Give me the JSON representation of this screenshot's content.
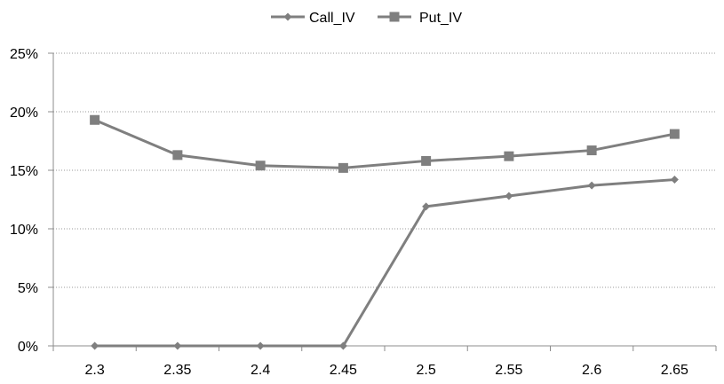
{
  "chart_data": {
    "type": "line",
    "title": "",
    "xlabel": "",
    "ylabel": "",
    "categories": [
      "2.3",
      "2.35",
      "2.4",
      "2.45",
      "2.5",
      "2.55",
      "2.6",
      "2.65"
    ],
    "y_ticks": [
      "0%",
      "5%",
      "10%",
      "15%",
      "20%",
      "25%"
    ],
    "ylim": [
      0,
      0.25
    ],
    "grid": true,
    "legend_position": "top-center",
    "series": [
      {
        "name": "Call_IV",
        "marker": "diamond",
        "color": "#7f7f7f",
        "values": [
          0.0,
          0.0,
          0.0,
          0.0,
          0.119,
          0.128,
          0.137,
          0.142
        ]
      },
      {
        "name": "Put_IV",
        "marker": "square",
        "color": "#7f7f7f",
        "values": [
          0.193,
          0.163,
          0.154,
          0.152,
          0.158,
          0.162,
          0.167,
          0.181
        ]
      }
    ]
  }
}
